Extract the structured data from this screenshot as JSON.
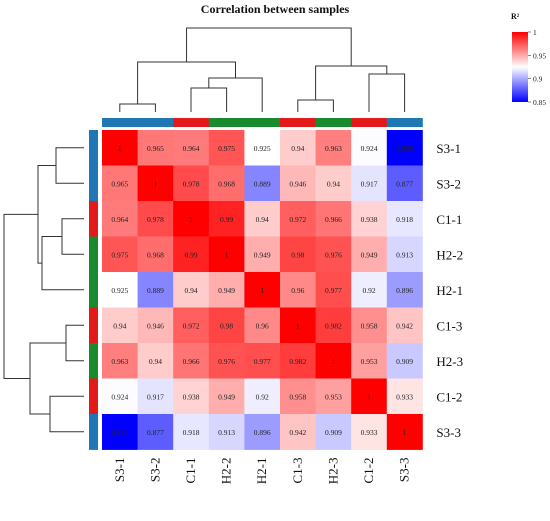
{
  "chart_data": {
    "type": "heatmap",
    "title": "Correlation between samples",
    "legend": {
      "title": "R²",
      "ticks": [
        1,
        0.95,
        0.9,
        0.85
      ],
      "colors": {
        "low": "#0000ff",
        "mid": "#ffffff",
        "high": "#ff0000"
      },
      "range": [
        0.85,
        1
      ]
    },
    "columns": [
      "S3-1",
      "S3-2",
      "C1-1",
      "H2-2",
      "H2-1",
      "C1-3",
      "H2-3",
      "C1-2",
      "S3-3"
    ],
    "rows": [
      "S3-1",
      "S3-2",
      "C1-1",
      "H2-2",
      "H2-1",
      "C1-3",
      "H2-3",
      "C1-2",
      "S3-3"
    ],
    "group_colors": {
      "S3": "#1f78b4",
      "C1": "#e31a1c",
      "H2": "#1a8a2e"
    },
    "values": [
      [
        "1",
        "0.965",
        "0.964",
        "0.975",
        "0.925",
        "0.94",
        "0.963",
        "0.924",
        "0.836"
      ],
      [
        "0.965",
        "1",
        "0.978",
        "0.968",
        "0.889",
        "0.946",
        "0.94",
        "0.917",
        "0.877"
      ],
      [
        "0.964",
        "0.978",
        "1",
        "0.99",
        "0.94",
        "0.972",
        "0.966",
        "0.938",
        "0.918"
      ],
      [
        "0.975",
        "0.968",
        "0.99",
        "1",
        "0.949",
        "0.98",
        "0.976",
        "0.949",
        "0.913"
      ],
      [
        "0.925",
        "0.889",
        "0.94",
        "0.949",
        "1",
        "0.96",
        "0.977",
        "0.92",
        "0.896"
      ],
      [
        "0.94",
        "0.946",
        "0.972",
        "0.98",
        "0.96",
        "1",
        "0.982",
        "0.958",
        "0.942"
      ],
      [
        "0.963",
        "0.94",
        "0.966",
        "0.976",
        "0.977",
        "0.982",
        "1",
        "0.953",
        "0.909"
      ],
      [
        "0.924",
        "0.917",
        "0.938",
        "0.949",
        "0.92",
        "0.958",
        "0.953",
        "1",
        "0.933"
      ],
      [
        "0.836",
        "0.877",
        "0.918",
        "0.913",
        "0.896",
        "0.942",
        "0.909",
        "0.933",
        "1"
      ]
    ]
  }
}
